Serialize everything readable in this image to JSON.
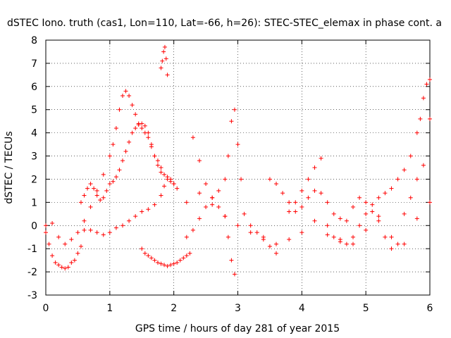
{
  "chart_data": {
    "type": "scatter",
    "title": "dSTEC Iono. truth (cas1, Lon=110, Lat=-66, h=26): STEC-STEC_elemax in phase cont. a",
    "xlabel": "GPS time / hours of day 281 of year 2015",
    "ylabel": "dSTEC  / TECUs",
    "xlim": [
      0,
      6
    ],
    "ylim": [
      -3,
      8
    ],
    "xticks": [
      "0",
      "1",
      "2",
      "3",
      "4",
      "5",
      "6"
    ],
    "yticks": [
      "-3",
      "-2",
      "-1",
      "0",
      "1",
      "2",
      "3",
      "4",
      "5",
      "6",
      "7",
      "8"
    ],
    "marker": "+",
    "color": "#ff0000",
    "grid": "dotted",
    "series": [
      {
        "x": [
          0.0,
          0.05,
          0.1,
          0.15,
          0.2,
          0.25,
          0.3,
          0.35,
          0.4,
          0.45,
          0.5,
          0.55
        ],
        "y": [
          0.0,
          -0.8,
          -1.3,
          -1.6,
          -1.7,
          -1.8,
          -1.85,
          -1.8,
          -1.6,
          -1.5,
          -1.2,
          -0.9
        ]
      },
      {
        "x": [
          0.0,
          0.1,
          0.2,
          0.3,
          0.4,
          0.5,
          0.6,
          0.7,
          0.8,
          0.9,
          1.0,
          1.05,
          1.1,
          1.15,
          1.2,
          1.25,
          1.3,
          1.35,
          1.4,
          1.45,
          1.5,
          1.55,
          1.6,
          1.65,
          1.7,
          1.75,
          1.8,
          1.85,
          1.9,
          1.95,
          2.0
        ],
        "y": [
          -0.3,
          0.1,
          -0.5,
          -0.8,
          -0.6,
          -0.3,
          0.2,
          0.8,
          1.5,
          2.2,
          3.0,
          3.5,
          4.2,
          5.0,
          5.6,
          5.8,
          5.6,
          5.2,
          4.8,
          4.4,
          4.2,
          4.0,
          3.8,
          3.4,
          3.0,
          2.8,
          2.5,
          2.2,
          2.0,
          1.9,
          1.8
        ]
      },
      {
        "x": [
          0.55,
          0.6,
          0.65,
          0.7,
          0.75,
          0.8,
          0.85,
          0.9,
          0.95,
          1.0,
          1.05,
          1.1,
          1.15,
          1.2,
          1.25,
          1.3,
          1.35,
          1.4,
          1.45,
          1.5,
          1.55,
          1.6,
          1.65,
          1.7,
          1.75,
          1.8
        ],
        "y": [
          1.0,
          1.3,
          1.6,
          1.8,
          1.6,
          1.3,
          1.1,
          1.2,
          1.5,
          1.8,
          1.9,
          2.1,
          2.4,
          2.8,
          3.2,
          3.6,
          4.0,
          4.2,
          4.35,
          4.4,
          4.3,
          4.0,
          3.5,
          3.0,
          2.6,
          2.3
        ]
      },
      {
        "x": [
          0.6,
          0.7,
          0.8,
          0.9,
          1.0,
          1.1,
          1.2,
          1.3,
          1.4,
          1.5,
          1.6,
          1.7,
          1.8,
          1.85,
          1.9,
          1.95,
          2.0,
          2.05
        ],
        "y": [
          -0.2,
          -0.2,
          -0.3,
          -0.4,
          -0.3,
          -0.1,
          0.0,
          0.2,
          0.4,
          0.6,
          0.7,
          0.9,
          1.3,
          1.7,
          2.1,
          2.0,
          1.8,
          1.6
        ]
      },
      {
        "x": [
          1.5,
          1.55,
          1.6,
          1.65,
          1.7,
          1.75,
          1.8,
          1.85,
          1.9,
          1.95,
          2.0,
          2.05,
          2.1,
          2.15,
          2.2,
          2.25
        ],
        "y": [
          -1.0,
          -1.2,
          -1.3,
          -1.4,
          -1.5,
          -1.6,
          -1.65,
          -1.7,
          -1.75,
          -1.7,
          -1.65,
          -1.6,
          -1.5,
          -1.4,
          -1.3,
          -1.2
        ]
      },
      {
        "x": [
          1.8,
          1.82,
          1.84,
          1.86,
          1.88,
          1.9
        ],
        "y": [
          6.8,
          7.1,
          7.5,
          7.7,
          7.2,
          6.5
        ]
      },
      {
        "x": [
          2.2,
          2.3,
          2.4,
          2.5,
          2.6,
          2.7,
          2.8,
          2.85,
          2.9,
          2.95,
          3.0,
          3.05,
          3.1,
          3.2,
          3.3,
          3.4,
          3.5,
          3.6
        ],
        "y": [
          -0.5,
          -0.2,
          0.3,
          0.8,
          1.2,
          1.5,
          2.0,
          3.0,
          4.5,
          5.0,
          3.5,
          2.0,
          0.5,
          0.0,
          -0.3,
          -0.6,
          -0.9,
          -1.2
        ]
      },
      {
        "x": [
          2.3,
          2.4,
          2.5,
          2.6,
          2.7,
          2.8,
          2.85,
          2.9,
          2.95
        ],
        "y": [
          3.8,
          2.8,
          1.8,
          1.2,
          0.8,
          0.4,
          -0.5,
          -1.5,
          -2.1
        ]
      },
      {
        "x": [
          2.2,
          2.4,
          2.6,
          2.8,
          3.0,
          3.2,
          3.4,
          3.6,
          3.8,
          4.0,
          4.2,
          4.4,
          4.6,
          4.8,
          5.0,
          5.2,
          5.4,
          5.6,
          5.8,
          6.0
        ],
        "y": [
          1.0,
          1.4,
          0.9,
          0.4,
          0.0,
          -0.3,
          -0.5,
          -0.8,
          -0.6,
          -0.3,
          0.2,
          -0.4,
          -0.6,
          -0.8,
          -0.2,
          0.4,
          -0.5,
          -0.8,
          0.3,
          1.0
        ]
      },
      {
        "x": [
          3.5,
          3.6,
          3.7,
          3.8,
          3.9,
          4.0,
          4.1,
          4.2,
          4.3,
          4.4,
          4.5,
          4.6,
          4.7,
          4.8,
          4.9,
          5.0,
          5.1,
          5.2,
          5.3,
          5.4,
          5.5,
          5.6,
          5.7,
          5.8,
          5.9,
          6.0
        ],
        "y": [
          2.0,
          1.8,
          1.4,
          1.0,
          0.6,
          0.8,
          1.2,
          1.5,
          1.4,
          1.0,
          0.5,
          0.3,
          0.2,
          0.8,
          1.2,
          1.0,
          0.6,
          0.2,
          -0.5,
          -1.0,
          -0.8,
          0.5,
          1.2,
          2.0,
          2.6,
          4.6
        ]
      },
      {
        "x": [
          3.8,
          3.9,
          4.0,
          4.1,
          4.2,
          4.3
        ],
        "y": [
          0.6,
          1.0,
          1.5,
          2.0,
          2.5,
          2.9
        ]
      },
      {
        "x": [
          4.4,
          4.5,
          4.6,
          4.7,
          4.8,
          4.9,
          5.0,
          5.1,
          5.2,
          5.3,
          5.4,
          5.5,
          5.6,
          5.7,
          5.8,
          5.85,
          5.9,
          5.95,
          6.0
        ],
        "y": [
          0.0,
          -0.5,
          -0.7,
          -0.8,
          -0.5,
          0.0,
          0.5,
          0.9,
          1.2,
          1.4,
          1.6,
          2.0,
          2.4,
          3.0,
          4.0,
          4.6,
          5.5,
          6.1,
          6.3
        ]
      }
    ]
  }
}
